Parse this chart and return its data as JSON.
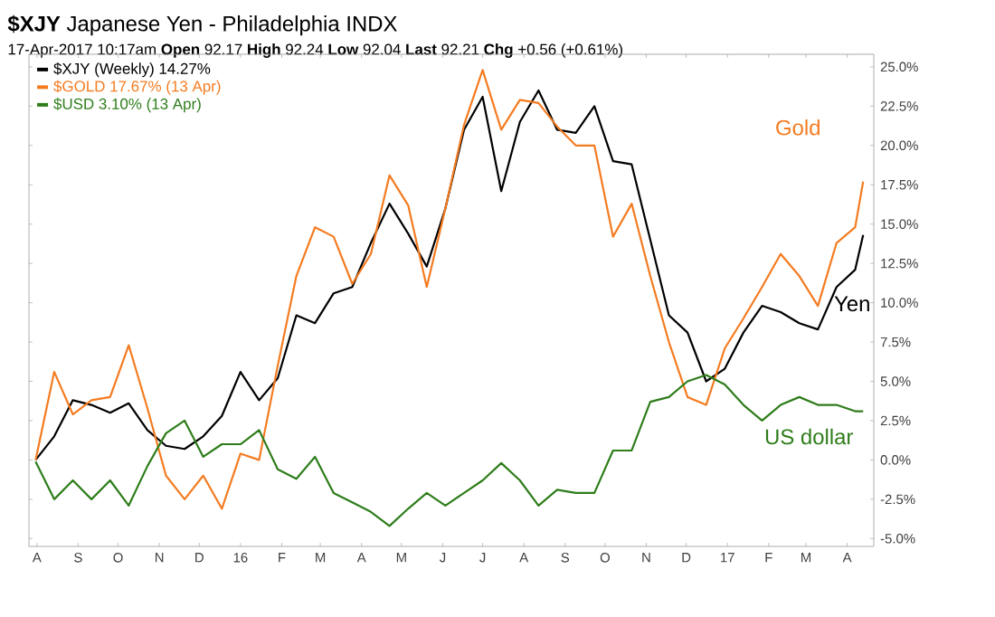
{
  "chart_data": {
    "type": "line",
    "title": "**$XJY** Japanese Yen - Philadelphia INDX",
    "subtitle": "17-Apr-2017 10:17am  **Open** 92.17  **High** 92.24  **Low** 92.04  **Last** 92.21  **Chg** +0.56 (+0.61%)",
    "x": [
      "2015-07-31",
      "2015-08-14",
      "2015-08-28",
      "2015-09-11",
      "2015-09-25",
      "2015-10-09",
      "2015-10-23",
      "2015-11-06",
      "2015-11-20",
      "2015-12-04",
      "2015-12-18",
      "2016-01-01",
      "2016-01-15",
      "2016-01-29",
      "2016-02-12",
      "2016-02-26",
      "2016-03-11",
      "2016-03-25",
      "2016-04-08",
      "2016-04-22",
      "2016-05-06",
      "2016-05-20",
      "2016-06-03",
      "2016-06-17",
      "2016-07-01",
      "2016-07-15",
      "2016-07-29",
      "2016-08-12",
      "2016-08-26",
      "2016-09-09",
      "2016-09-23",
      "2016-10-07",
      "2016-10-21",
      "2016-11-04",
      "2016-11-18",
      "2016-12-02",
      "2016-12-16",
      "2016-12-30",
      "2017-01-13",
      "2017-01-27",
      "2017-02-10",
      "2017-02-24",
      "2017-03-10",
      "2017-03-24",
      "2017-04-07",
      "2017-04-13"
    ],
    "series": [
      {
        "name": "$XJY (Weekly) 14.27%",
        "color": "#000000",
        "values": [
          0.0,
          1.5,
          3.8,
          3.5,
          3.0,
          3.6,
          1.9,
          0.9,
          0.7,
          1.5,
          2.8,
          5.6,
          3.8,
          5.2,
          9.2,
          8.7,
          10.6,
          11.0,
          13.8,
          16.3,
          14.4,
          12.3,
          16.0,
          21.0,
          23.1,
          17.1,
          21.5,
          23.5,
          21.0,
          20.8,
          22.5,
          19.0,
          18.8,
          14.0,
          9.2,
          8.1,
          5.0,
          5.8,
          8.1,
          9.8,
          9.4,
          8.7,
          8.3,
          11.0,
          12.1,
          14.3
        ]
      },
      {
        "name": "$GOLD 17.67% (13 Apr)",
        "color": "#f47b20",
        "values": [
          0.0,
          5.6,
          2.9,
          3.8,
          4.0,
          7.3,
          3.3,
          -1.0,
          -2.5,
          -1.0,
          -3.1,
          0.4,
          0.0,
          6.0,
          11.7,
          14.8,
          14.2,
          11.2,
          13.1,
          18.1,
          16.2,
          11.0,
          16.0,
          21.3,
          24.8,
          21.0,
          22.9,
          22.7,
          21.2,
          20.0,
          20.0,
          14.2,
          16.3,
          11.7,
          7.5,
          4.0,
          3.5,
          7.1,
          9.0,
          11.0,
          13.1,
          11.7,
          9.8,
          13.8,
          14.8,
          17.7
        ]
      },
      {
        "name": "$USD 3.10% (13 Apr)",
        "color": "#2e7d1a",
        "values": [
          -0.1,
          -2.5,
          -1.3,
          -2.5,
          -1.3,
          -2.9,
          -0.4,
          1.7,
          2.5,
          0.2,
          1.0,
          1.0,
          1.9,
          -0.6,
          -1.2,
          0.2,
          -2.1,
          -2.7,
          -3.3,
          -4.2,
          -3.1,
          -2.1,
          -2.9,
          -2.1,
          -1.3,
          -0.2,
          -1.3,
          -2.9,
          -1.9,
          -2.1,
          -2.1,
          0.6,
          0.6,
          3.7,
          4.0,
          5.0,
          5.4,
          4.8,
          3.5,
          2.5,
          3.5,
          4.0,
          3.5,
          3.5,
          3.1,
          3.1
        ]
      }
    ],
    "annotations": [
      "Yen",
      "Gold",
      "US dollar"
    ],
    "xlim": [
      "2015-07-26",
      "2017-04-21"
    ],
    "xticks": [
      {
        "value": "2015-08-01",
        "label": "A"
      },
      {
        "value": "2015-09-01",
        "label": "S"
      },
      {
        "value": "2015-10-01",
        "label": "O"
      },
      {
        "value": "2015-11-01",
        "label": "N"
      },
      {
        "value": "2015-12-01",
        "label": "D"
      },
      {
        "value": "2016-01-01",
        "label": "16"
      },
      {
        "value": "2016-02-01",
        "label": "F"
      },
      {
        "value": "2016-03-01",
        "label": "M"
      },
      {
        "value": "2016-04-01",
        "label": "A"
      },
      {
        "value": "2016-05-01",
        "label": "M"
      },
      {
        "value": "2016-06-01",
        "label": "J"
      },
      {
        "value": "2016-07-01",
        "label": "J"
      },
      {
        "value": "2016-08-01",
        "label": "A"
      },
      {
        "value": "2016-09-01",
        "label": "S"
      },
      {
        "value": "2016-10-01",
        "label": "O"
      },
      {
        "value": "2016-11-01",
        "label": "N"
      },
      {
        "value": "2016-12-01",
        "label": "D"
      },
      {
        "value": "2017-01-01",
        "label": "17"
      },
      {
        "value": "2017-02-01",
        "label": "F"
      },
      {
        "value": "2017-03-01",
        "label": "M"
      },
      {
        "value": "2017-04-01",
        "label": "A"
      }
    ],
    "ylim": [
      -5.5,
      25.8
    ],
    "yticks": [
      {
        "value": -5,
        "label": "-5.0%"
      },
      {
        "value": -2.5,
        "label": "-2.5%"
      },
      {
        "value": 0,
        "label": "0.0%"
      },
      {
        "value": 2.5,
        "label": "2.5%"
      },
      {
        "value": 5,
        "label": "5.0%"
      },
      {
        "value": 7.5,
        "label": "7.5%"
      },
      {
        "value": 10,
        "label": "10.0%"
      },
      {
        "value": 12.5,
        "label": "12.5%"
      },
      {
        "value": 15,
        "label": "15.0%"
      },
      {
        "value": 17.5,
        "label": "17.5%"
      },
      {
        "value": 20,
        "label": "20.0%"
      },
      {
        "value": 22.5,
        "label": "22.5%"
      },
      {
        "value": 25,
        "label": "25.0%"
      }
    ],
    "legend": "top left"
  }
}
